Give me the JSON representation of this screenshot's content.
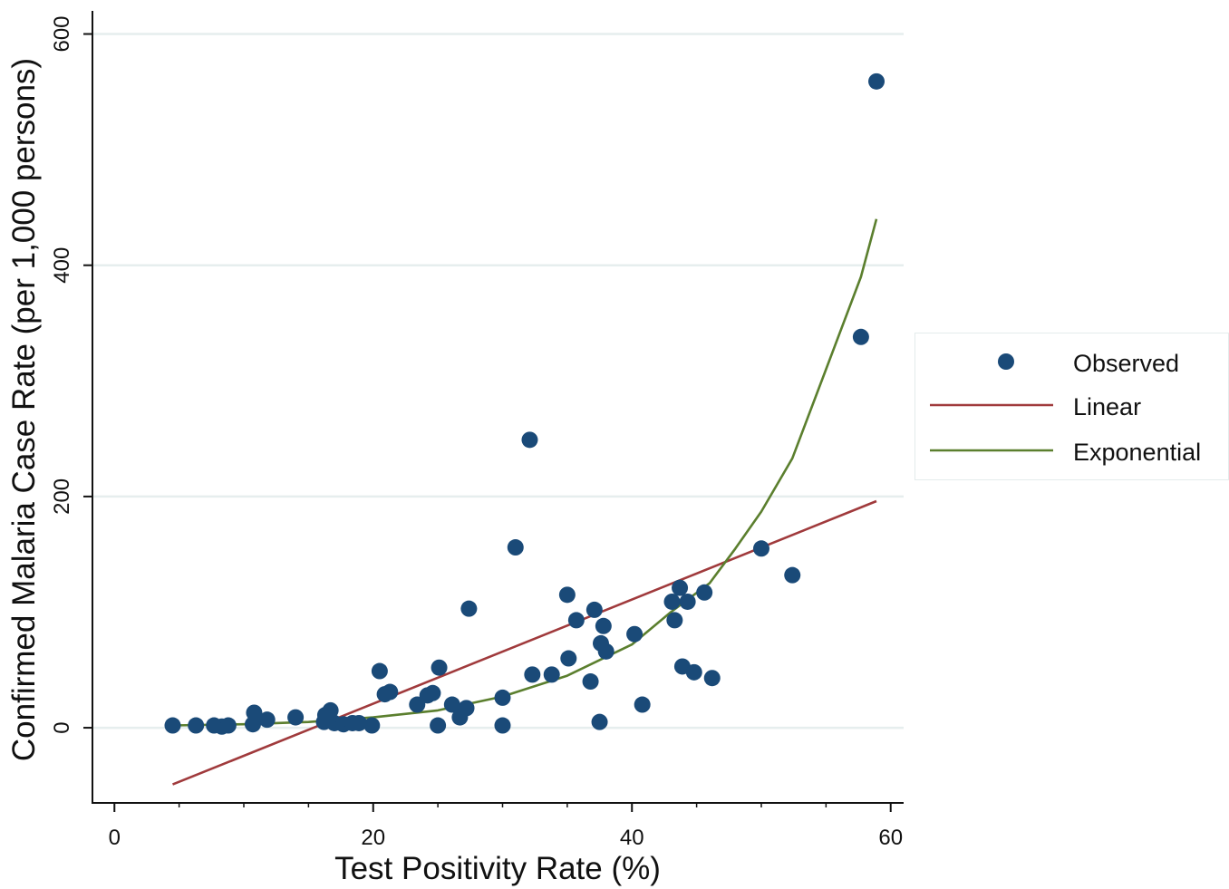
{
  "chart_data": {
    "type": "scatter",
    "xlabel": "Test Positivity Rate (%)",
    "ylabel": "Confirmed Malaria Case Rate (per 1,000 persons)",
    "xlim": [
      -1.7,
      61
    ],
    "ylim": [
      -65,
      620
    ],
    "x_ticks": [
      0,
      20,
      40,
      60
    ],
    "x_minor_ticks": [
      5,
      10,
      15,
      25,
      30,
      35,
      45,
      50,
      55
    ],
    "y_ticks": [
      0,
      200,
      400,
      600
    ],
    "grid": "horizontal",
    "legend_position": "right",
    "colors": {
      "observed": "#1a4a78",
      "linear": "#a03a3c",
      "exponential": "#5b7f2e",
      "grid": "#e6eeee"
    },
    "series": [
      {
        "name": "Observed",
        "type": "scatter",
        "points": [
          [
            4.5,
            2
          ],
          [
            6.3,
            2
          ],
          [
            7.7,
            2
          ],
          [
            8.3,
            1
          ],
          [
            8.8,
            2
          ],
          [
            10.7,
            3
          ],
          [
            10.8,
            13
          ],
          [
            11.8,
            7
          ],
          [
            14,
            9
          ],
          [
            16.2,
            5
          ],
          [
            16.3,
            11
          ],
          [
            16.7,
            15
          ],
          [
            17,
            4
          ],
          [
            17.7,
            3
          ],
          [
            18.4,
            4
          ],
          [
            18.9,
            4
          ],
          [
            19.9,
            2
          ],
          [
            20.5,
            49
          ],
          [
            20.9,
            29
          ],
          [
            21.3,
            31
          ],
          [
            23.4,
            20
          ],
          [
            24.2,
            28
          ],
          [
            24.6,
            30
          ],
          [
            25,
            2
          ],
          [
            25.1,
            52
          ],
          [
            26.1,
            20
          ],
          [
            26.7,
            9
          ],
          [
            27.2,
            17
          ],
          [
            27.4,
            103
          ],
          [
            30,
            26
          ],
          [
            30,
            2
          ],
          [
            31,
            156
          ],
          [
            32.1,
            249
          ],
          [
            32.3,
            46
          ],
          [
            33.8,
            46
          ],
          [
            35,
            115
          ],
          [
            35.1,
            60
          ],
          [
            35.7,
            93
          ],
          [
            36.8,
            40
          ],
          [
            37.1,
            102
          ],
          [
            37.5,
            5
          ],
          [
            37.6,
            73
          ],
          [
            37.8,
            88
          ],
          [
            38,
            66
          ],
          [
            40.2,
            81
          ],
          [
            40.8,
            20
          ],
          [
            43.1,
            109
          ],
          [
            43.3,
            93
          ],
          [
            43.7,
            121
          ],
          [
            43.9,
            53
          ],
          [
            44.3,
            109
          ],
          [
            44.8,
            48
          ],
          [
            45.6,
            117
          ],
          [
            46.2,
            43
          ],
          [
            50,
            155
          ],
          [
            52.4,
            132
          ],
          [
            57.7,
            338
          ],
          [
            58.9,
            559
          ]
        ]
      },
      {
        "name": "Linear",
        "type": "line",
        "points": [
          [
            4.5,
            -49
          ],
          [
            58.9,
            196
          ]
        ]
      },
      {
        "name": "Exponential",
        "type": "line",
        "points": [
          [
            4.5,
            2
          ],
          [
            10,
            3
          ],
          [
            15,
            5
          ],
          [
            20,
            9
          ],
          [
            25,
            15
          ],
          [
            30,
            27
          ],
          [
            35,
            45
          ],
          [
            40,
            72
          ],
          [
            43,
            100
          ],
          [
            46,
            125
          ],
          [
            48,
            155
          ],
          [
            50,
            187
          ],
          [
            52.4,
            233
          ],
          [
            55,
            310
          ],
          [
            57.7,
            390
          ],
          [
            58.9,
            440
          ]
        ]
      }
    ]
  }
}
